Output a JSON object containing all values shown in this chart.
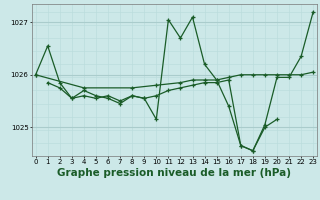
{
  "title": "Graphe pression niveau de la mer (hPa)",
  "bg_color": "#cce8e8",
  "grid_color_major": "#aacccc",
  "grid_color_minor": "#bbdddd",
  "line_color": "#1a5c28",
  "series": [
    {
      "x": [
        0,
        1,
        2,
        3,
        4,
        5,
        6,
        7,
        8,
        9,
        10,
        11,
        12,
        13,
        14,
        15,
        16,
        17,
        18,
        19,
        20
      ],
      "y": [
        1026.0,
        1026.55,
        1025.85,
        1025.55,
        1025.7,
        1025.6,
        1025.55,
        1025.45,
        1025.6,
        1025.55,
        1025.15,
        1027.05,
        1026.7,
        1027.1,
        1026.2,
        1025.9,
        1025.4,
        1024.65,
        1024.55,
        1025.0,
        1025.15
      ]
    },
    {
      "x": [
        0,
        4,
        8,
        10,
        12,
        13,
        14,
        15,
        16,
        17,
        18,
        19,
        20,
        21,
        22,
        23
      ],
      "y": [
        1026.0,
        1025.75,
        1025.75,
        1025.8,
        1025.85,
        1025.9,
        1025.9,
        1025.9,
        1025.95,
        1026.0,
        1026.0,
        1026.0,
        1026.0,
        1026.0,
        1026.0,
        1026.05
      ]
    },
    {
      "x": [
        1,
        2,
        3,
        4,
        5,
        6,
        7,
        8,
        9,
        10,
        11,
        12,
        13,
        14,
        15,
        16,
        17,
        18,
        19,
        20,
        21,
        22,
        23
      ],
      "y": [
        1025.85,
        1025.75,
        1025.55,
        1025.6,
        1025.55,
        1025.6,
        1025.5,
        1025.6,
        1025.55,
        1025.6,
        1025.7,
        1025.75,
        1025.8,
        1025.85,
        1025.85,
        1025.9,
        1024.65,
        1024.55,
        1025.05,
        1025.95,
        1025.95,
        1026.35,
        1027.2
      ]
    }
  ],
  "xlim": [
    -0.3,
    23.3
  ],
  "ylim": [
    1024.45,
    1027.35
  ],
  "yticks": [
    1025,
    1026,
    1027
  ],
  "xticks": [
    0,
    1,
    2,
    3,
    4,
    5,
    6,
    7,
    8,
    9,
    10,
    11,
    12,
    13,
    14,
    15,
    16,
    17,
    18,
    19,
    20,
    21,
    22,
    23
  ],
  "title_fontsize": 7.5,
  "tick_fontsize": 5.0
}
